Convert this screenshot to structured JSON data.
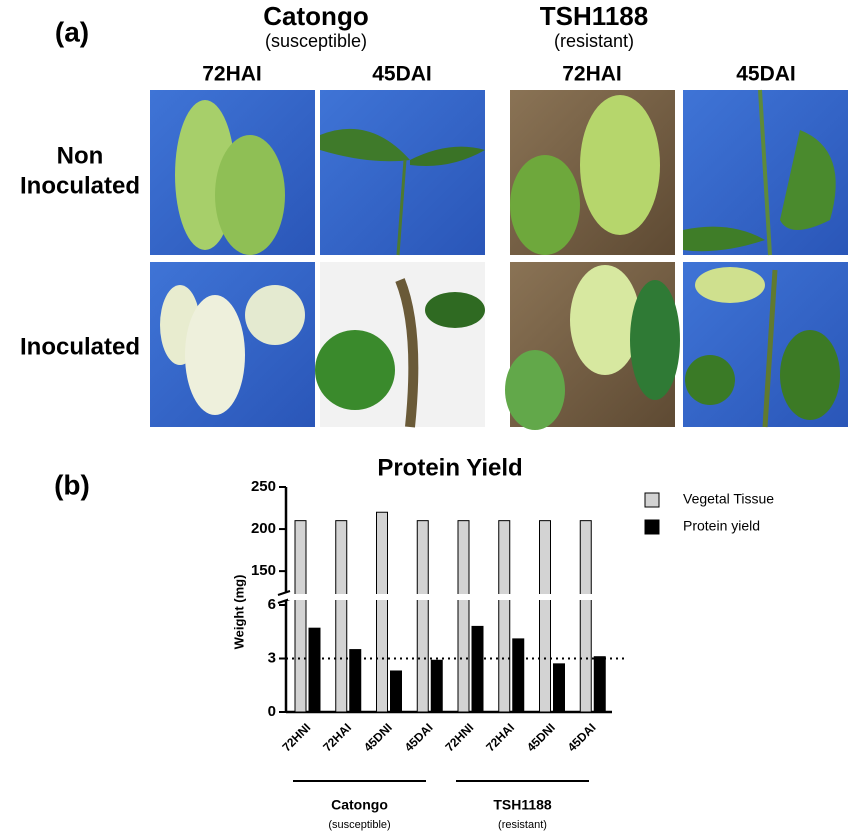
{
  "panel_a": {
    "label": "(a)",
    "groups": [
      {
        "name": "Catongo",
        "note": "(susceptible)",
        "columns": [
          "72HAI",
          "45DAI"
        ]
      },
      {
        "name": "TSH1188",
        "note": "(resistant)",
        "columns": [
          "72HAI",
          "45DAI"
        ]
      }
    ],
    "rows": [
      [
        "Non",
        "Inoculated"
      ],
      [
        "Inoculated"
      ]
    ]
  },
  "panel_b": {
    "label": "(b)"
  },
  "chart_data": {
    "type": "bar",
    "title": "Protein Yield",
    "y_label": "Weight (mg)",
    "categories": [
      "72HNI",
      "72HAI",
      "45DNI",
      "45DAI",
      "72HNI",
      "72HAI",
      "45DNI",
      "45DAI"
    ],
    "series": [
      {
        "name": "Vegetal Tissue",
        "color": "#d3d3d3",
        "axis": "upper",
        "values": [
          210,
          210,
          220,
          210,
          210,
          210,
          210,
          210
        ]
      },
      {
        "name": "Protein yield",
        "color": "#000000",
        "axis": "lower",
        "values": [
          4.7,
          3.5,
          2.3,
          2.9,
          4.8,
          4.1,
          2.7,
          3.1
        ]
      }
    ],
    "ylim": [
      0,
      6
    ],
    "yticks": [
      0,
      3,
      6
    ],
    "ylim_upper": [
      124,
      250
    ],
    "yticks_upper": [
      150,
      200,
      250
    ],
    "reference_line": 3,
    "groups": [
      {
        "name": "Catongo",
        "note": "(susceptible)"
      },
      {
        "name": "TSH1188",
        "note": "(resistant)"
      }
    ]
  }
}
